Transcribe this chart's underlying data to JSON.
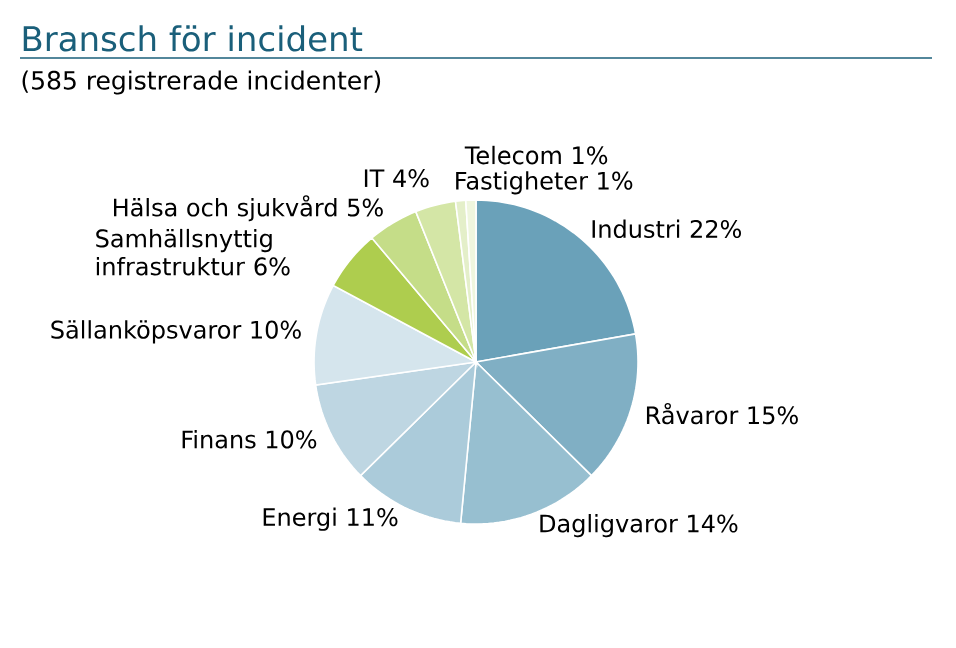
{
  "chart_data": {
    "type": "pie",
    "title": "Bransch för incident",
    "subtitle": "(585 registrerade incidenter)",
    "categories": [
      "Industri",
      "Råvaror",
      "Dagligvaror",
      "Energi",
      "Finans",
      "Sällanköpsvaror",
      "Samhällsnyttig infrastruktur",
      "Hälsa och sjukvård",
      "IT",
      "Fastigheter",
      "Telecom"
    ],
    "values": [
      22,
      15,
      14,
      11,
      10,
      10,
      6,
      5,
      4,
      1,
      1
    ],
    "value_labels": [
      "22%",
      "15%",
      "14%",
      "11%",
      "10%",
      "10%",
      "6%",
      "5%",
      "4%",
      "1%",
      "1%"
    ],
    "colors": [
      "#6aa1b9",
      "#80afc4",
      "#97bfd0",
      "#abcbda",
      "#bed6e2",
      "#d5e5ed",
      "#aecd4e",
      "#c5dd88",
      "#d4e6a6",
      "#e4efc9",
      "#eff6de"
    ]
  }
}
